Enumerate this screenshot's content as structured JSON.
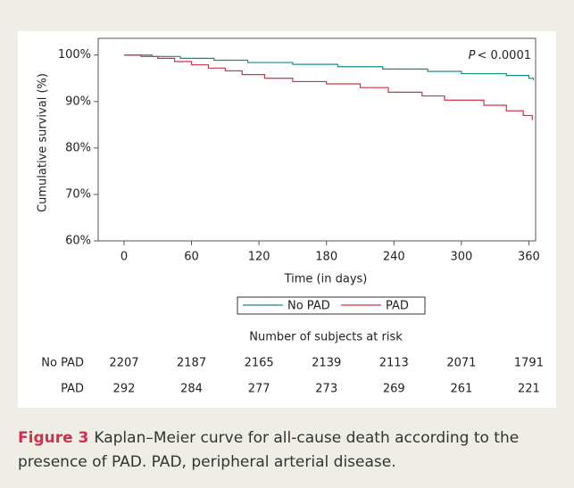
{
  "chart_data": {
    "type": "step-line",
    "ylabel": "Cumulative survival (%)",
    "xlabel": "Time (in days)",
    "p_label": "P",
    "p_value": "< 0.0001",
    "xlim": [
      -23,
      366
    ],
    "ylim": [
      60,
      103.6
    ],
    "xticks": [
      0,
      60,
      120,
      180,
      240,
      300,
      360
    ],
    "yticks": [
      {
        "value": 60,
        "label": "60%"
      },
      {
        "value": 70,
        "label": "70%"
      },
      {
        "value": 80,
        "label": "80%"
      },
      {
        "value": 90,
        "label": "90%"
      },
      {
        "value": 100,
        "label": "100%"
      }
    ],
    "grid": false,
    "series": [
      {
        "name": "No PAD",
        "color": "#1a8a8a",
        "x": [
          0,
          25,
          25,
          50,
          50,
          80,
          80,
          110,
          110,
          150,
          150,
          190,
          190,
          230,
          230,
          270,
          270,
          300,
          300,
          340,
          340,
          360,
          360,
          364,
          364
        ],
        "values": [
          100,
          100,
          99.7,
          99.7,
          99.3,
          99.3,
          98.9,
          98.9,
          98.4,
          98.4,
          98,
          98,
          97.5,
          97.5,
          97,
          97,
          96.5,
          96.5,
          96,
          96,
          95.6,
          95.6,
          95,
          95,
          94.6
        ]
      },
      {
        "name": "PAD",
        "color": "#d0304a",
        "x": [
          0,
          15,
          15,
          30,
          30,
          45,
          45,
          60,
          60,
          75,
          75,
          90,
          90,
          105,
          105,
          125,
          125,
          150,
          150,
          180,
          180,
          210,
          210,
          235,
          235,
          265,
          265,
          285,
          285,
          320,
          320,
          340,
          340,
          355,
          355,
          363,
          363
        ],
        "values": [
          100,
          100,
          99.7,
          99.7,
          99.3,
          99.3,
          98.6,
          98.6,
          97.9,
          97.9,
          97.2,
          97.2,
          96.6,
          96.6,
          95.8,
          95.8,
          95,
          95,
          94.3,
          94.3,
          93.8,
          93.8,
          93,
          93,
          92,
          92,
          91.2,
          91.2,
          90.3,
          90.3,
          89.2,
          89.2,
          88,
          88,
          87,
          87,
          86
        ]
      }
    ]
  },
  "risk_table": {
    "title": "Number of subjects at risk",
    "rows": [
      {
        "name": "No PAD",
        "values": [
          "2207",
          "2187",
          "2165",
          "2139",
          "2113",
          "2071",
          "1791"
        ]
      },
      {
        "name": "PAD",
        "values": [
          "292",
          "284",
          "277",
          "273",
          "269",
          "261",
          "221"
        ]
      }
    ]
  },
  "caption": {
    "label": "Figure 3",
    "text": "Kaplan–Meier curve for all-cause death according to the presence of PAD. PAD, peripheral arterial disease."
  }
}
